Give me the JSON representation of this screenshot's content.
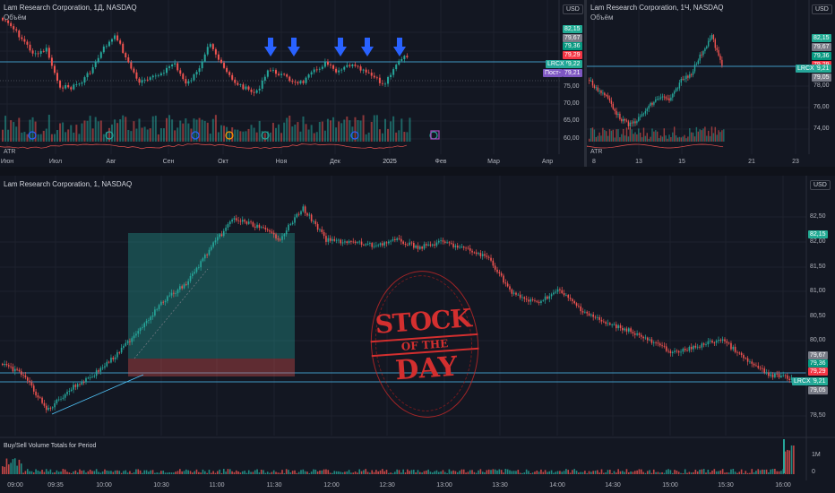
{
  "colors": {
    "up": "#26a69a",
    "down": "#ef5350",
    "bg": "#131722",
    "grid": "#1e222d",
    "level": "#4fc3f7",
    "arrow": "#2962ff",
    "vol_up": "#26a69a",
    "vol_down": "#ef5350",
    "atr": "#ef5350",
    "stamp": "#d32f2f",
    "long_zone": "#26a69a",
    "stop_zone": "#ef5350",
    "tag_cyan": "#089981",
    "tag_teal": "#22ab94",
    "tag_gray": "#787b86",
    "tag_red": "#f23645",
    "tag_purple": "#7e57c2"
  },
  "daily": {
    "title": "Lam Research Corporation, 1Д, NASDAQ",
    "volume_label": "Объём",
    "atr_label": "ATR",
    "currency": "USD",
    "y_ticks": [
      "75,00",
      "70,00",
      "65,00",
      "60,00"
    ],
    "price_tags": [
      {
        "label": "82,15",
        "color": "tag_teal"
      },
      {
        "label": "79,67",
        "color": "tag_gray"
      },
      {
        "label": "79,36",
        "color": "tag_cyan"
      },
      {
        "label": "79,29",
        "color": "tag_red"
      },
      {
        "label": "79,22",
        "color": "tag_teal"
      },
      {
        "label": "79,21",
        "color": "tag_purple"
      }
    ],
    "symbol_tag": "LRCX",
    "post_tag": "Пост-",
    "x_ticks": [
      "Июн",
      "Июл",
      "Авг",
      "Сен",
      "Окт",
      "Ноя",
      "Дек",
      "2025",
      "Фев",
      "Мар",
      "Апр"
    ],
    "arrow_icons": [
      "arrow-down-icon",
      "arrow-down-icon",
      "arrow-down-icon",
      "arrow-down-icon",
      "arrow-down-icon"
    ],
    "event_markers": [
      "D",
      "E",
      "D",
      "S",
      "E",
      "D",
      "E",
      "D",
      "E"
    ]
  },
  "hourly": {
    "title": "Lam Research Corporation, 1Ч, NASDAQ",
    "volume_label": "Объём",
    "atr_label": "ATR",
    "currency": "USD",
    "y_ticks": [
      "78,00",
      "76,00",
      "74,00"
    ],
    "price_tags": [
      {
        "label": "82,15",
        "color": "tag_teal"
      },
      {
        "label": "79,67",
        "color": "tag_gray"
      },
      {
        "label": "79,36",
        "color": "tag_cyan"
      },
      {
        "label": "79,29",
        "color": "tag_red"
      },
      {
        "label": "79,21",
        "color": "tag_teal"
      },
      {
        "label": "79,05",
        "color": "tag_gray"
      }
    ],
    "symbol_tag": "LRCX",
    "x_ticks": [
      "8",
      "13",
      "15",
      "21",
      "23"
    ]
  },
  "intraday": {
    "title": "Lam Research Corporation, 1, NASDAQ",
    "currency": "USD",
    "y_ticks": [
      "82,50",
      "82,00",
      "81,50",
      "81,00",
      "80,50",
      "80,00",
      "78,50"
    ],
    "price_tags": [
      {
        "label": "82,15",
        "color": "tag_teal"
      },
      {
        "label": "79,67",
        "color": "tag_gray"
      },
      {
        "label": "79,36",
        "color": "tag_cyan"
      },
      {
        "label": "79,29",
        "color": "tag_red"
      },
      {
        "label": "79,21",
        "color": "tag_teal"
      },
      {
        "label": "79,05",
        "color": "tag_gray"
      }
    ],
    "symbol_tag": "LRCX",
    "volume_indicator": "Buy/Sell Volume Totals for Period",
    "vol_ticks": [
      "1M",
      "0"
    ],
    "x_ticks": [
      "09:00",
      "09:35",
      "10:00",
      "10:30",
      "11:00",
      "11:30",
      "12:00",
      "12:30",
      "13:00",
      "13:30",
      "14:00",
      "14:30",
      "15:00",
      "15:30",
      "16:00"
    ],
    "stamp": {
      "line1": "STOCK",
      "line2": "OF THE",
      "line3": "DAY"
    }
  }
}
